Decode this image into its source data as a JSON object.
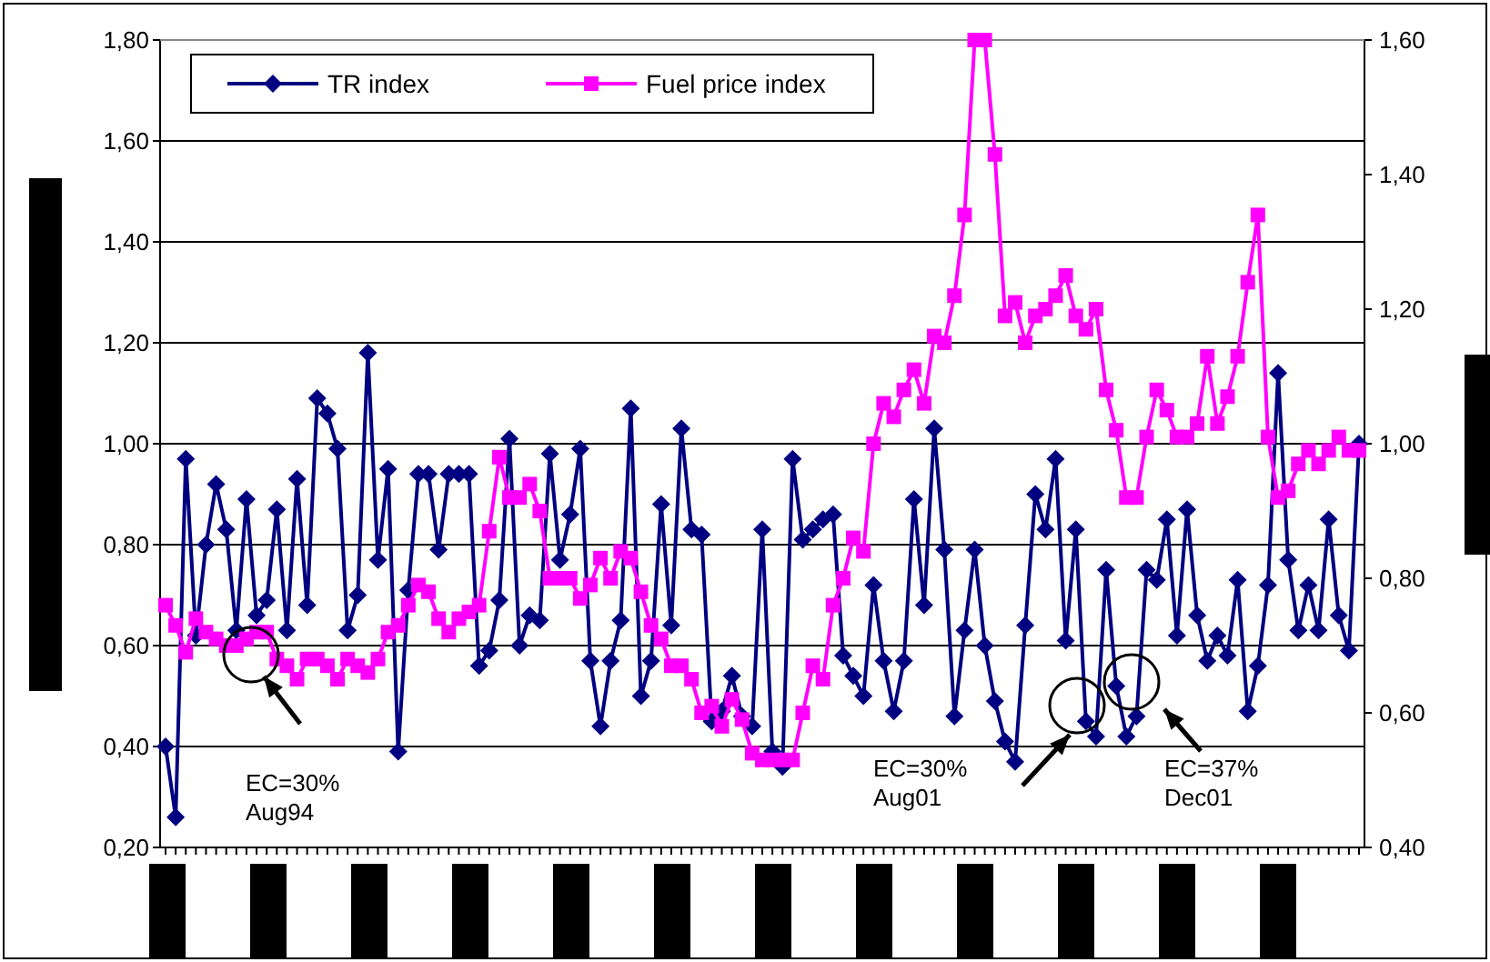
{
  "chart_data": {
    "type": "line",
    "categories": [
      null,
      null,
      null,
      null,
      null,
      null,
      null,
      null,
      null,
      null,
      null,
      null,
      null,
      null,
      null,
      null,
      null,
      null,
      null,
      null,
      null,
      null,
      null,
      null,
      null,
      null,
      null,
      null,
      null,
      null,
      null,
      null,
      null,
      null,
      null,
      null,
      null,
      null,
      null,
      null,
      null,
      null,
      null,
      null,
      null,
      null,
      null,
      null,
      null,
      null,
      null,
      null,
      null,
      null,
      null,
      null,
      null,
      null,
      null,
      null,
      null,
      null,
      null,
      null,
      null,
      null,
      null,
      null,
      null,
      null,
      null,
      null,
      null,
      null,
      null,
      null,
      null,
      null,
      null,
      null,
      null,
      null,
      null,
      null,
      null,
      null,
      null,
      null,
      null,
      null,
      null,
      null,
      null,
      null,
      null,
      null,
      null,
      null,
      null,
      null,
      null,
      null,
      null,
      null,
      null,
      null,
      null,
      null,
      null,
      null,
      null,
      null,
      null,
      null,
      null,
      null,
      null,
      null,
      null
    ],
    "series": [
      {
        "name": "TR index",
        "color": "#000080",
        "marker": "diamond",
        "values": [
          0.4,
          0.26,
          0.97,
          0.62,
          0.8,
          0.92,
          0.83,
          0.63,
          0.89,
          0.66,
          0.69,
          0.87,
          0.63,
          0.93,
          0.68,
          1.09,
          1.06,
          0.99,
          0.63,
          0.7,
          1.18,
          0.77,
          0.95,
          0.39,
          0.71,
          0.94,
          0.94,
          0.79,
          0.94,
          0.94,
          0.94,
          0.56,
          0.59,
          0.69,
          1.01,
          0.6,
          0.66,
          0.65,
          0.98,
          0.77,
          0.86,
          0.99,
          0.57,
          0.44,
          0.57,
          0.65,
          1.07,
          0.5,
          0.57,
          0.88,
          0.64,
          1.03,
          0.83,
          0.82,
          0.45,
          0.47,
          0.54,
          0.46,
          0.44,
          0.83,
          0.39,
          0.36,
          0.97,
          0.81,
          0.83,
          0.85,
          0.86,
          0.58,
          0.54,
          0.5,
          0.72,
          0.57,
          0.47,
          0.57,
          0.89,
          0.68,
          1.03,
          0.79,
          0.46,
          0.63,
          0.79,
          0.6,
          0.49,
          0.41,
          0.37,
          0.64,
          0.9,
          0.83,
          0.97,
          0.61,
          0.83,
          0.45,
          0.42,
          0.75,
          0.52,
          0.42,
          0.46,
          0.75,
          0.73,
          0.85,
          0.62,
          0.87,
          0.66,
          0.57,
          0.62,
          0.58,
          0.73,
          0.47,
          0.56,
          0.72,
          1.14,
          0.77,
          0.63,
          0.72,
          0.63,
          0.85,
          0.66,
          0.59,
          1.0
        ]
      },
      {
        "name": "Fuel price index",
        "color": "#ff00ff",
        "marker": "square",
        "axis": "y2",
        "values": [
          0.76,
          0.73,
          0.69,
          0.74,
          0.72,
          0.71,
          0.7,
          0.7,
          0.71,
          0.72,
          0.72,
          0.68,
          0.67,
          0.65,
          0.68,
          0.68,
          0.67,
          0.65,
          0.68,
          0.67,
          0.66,
          0.68,
          0.72,
          0.73,
          0.76,
          0.79,
          0.78,
          0.74,
          0.72,
          0.74,
          0.75,
          0.76,
          0.87,
          0.98,
          0.92,
          0.92,
          0.94,
          0.9,
          0.8,
          0.8,
          0.8,
          0.77,
          0.79,
          0.83,
          0.8,
          0.84,
          0.83,
          0.78,
          0.73,
          0.71,
          0.67,
          0.67,
          0.65,
          0.6,
          0.61,
          0.58,
          0.62,
          0.59,
          0.54,
          0.53,
          0.53,
          0.53,
          0.53,
          0.6,
          0.67,
          0.65,
          0.76,
          0.8,
          0.86,
          0.84,
          1.0,
          1.06,
          1.04,
          1.08,
          1.11,
          1.06,
          1.16,
          1.15,
          1.22,
          1.34,
          1.6,
          1.6,
          1.43,
          1.19,
          1.21,
          1.15,
          1.19,
          1.2,
          1.22,
          1.25,
          1.19,
          1.17,
          1.2,
          1.08,
          1.02,
          0.92,
          0.92,
          1.01,
          1.08,
          1.05,
          1.01,
          1.01,
          1.03,
          1.13,
          1.03,
          1.07,
          1.13,
          1.24,
          1.34,
          1.01,
          0.92,
          0.93,
          0.97,
          0.99,
          0.97,
          0.99,
          1.01,
          0.99,
          0.99
        ]
      }
    ],
    "ylim": [
      0.2,
      1.8
    ],
    "yticks": [
      {
        "value": 0.2,
        "label": "0,20"
      },
      {
        "value": 0.4,
        "label": "0,40"
      },
      {
        "value": 0.6,
        "label": "0,60"
      },
      {
        "value": 0.8,
        "label": "0,80"
      },
      {
        "value": 1.0,
        "label": "1,00"
      },
      {
        "value": 1.2,
        "label": "1,20"
      },
      {
        "value": 1.4,
        "label": "1,40"
      },
      {
        "value": 1.6,
        "label": "1,60"
      },
      {
        "value": 1.8,
        "label": "1,80"
      }
    ],
    "y2lim": [
      0.4,
      1.6
    ],
    "y2ticks": [
      {
        "value": 0.4,
        "label": "0,40"
      },
      {
        "value": 0.6,
        "label": "0,60"
      },
      {
        "value": 0.8,
        "label": "0,80"
      },
      {
        "value": 1.0,
        "label": "1,00"
      },
      {
        "value": 1.2,
        "label": "1,20"
      },
      {
        "value": 1.4,
        "label": "1,40"
      },
      {
        "value": 1.6,
        "label": "1,60"
      }
    ],
    "grid": "y",
    "legend": "top left",
    "line_style": "solid",
    "annotations": [
      "EC=30%\nAug94",
      "EC=30%\nAug01",
      "EC=37%\nDec01"
    ]
  }
}
